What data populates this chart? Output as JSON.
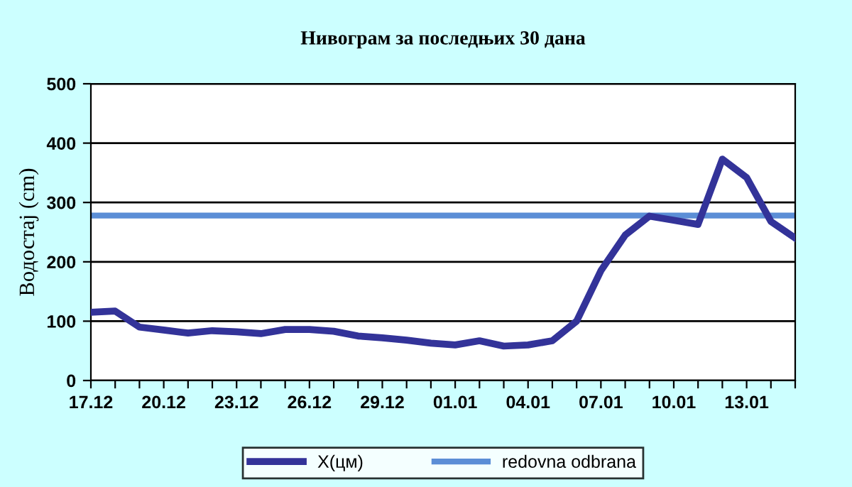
{
  "chart_data": {
    "type": "line",
    "title": "Нивограм за последњих 30 дана",
    "ylabel": "Водостај (cm)",
    "categories": [
      "17.12",
      null,
      null,
      "20.12",
      null,
      null,
      "23.12",
      null,
      null,
      "26.12",
      null,
      null,
      "29.12",
      null,
      null,
      "01.01",
      null,
      null,
      "04.01",
      null,
      null,
      "07.01",
      null,
      null,
      "10.01",
      null,
      null,
      "13.01",
      null,
      null
    ],
    "series": [
      {
        "name": "X(цм)",
        "color": "#333399",
        "values": [
          115,
          117,
          90,
          85,
          80,
          84,
          82,
          79,
          86,
          86,
          83,
          75,
          72,
          68,
          63,
          60,
          67,
          58,
          60,
          67,
          100,
          185,
          245,
          277,
          270,
          263,
          373,
          342,
          268,
          240
        ]
      }
    ],
    "ref_lines": [
      {
        "axis": "y",
        "value": 278,
        "label": "redovna odbrana",
        "color": "#5b8ed6",
        "line_style": "solid"
      }
    ],
    "ylim": [
      0,
      500
    ],
    "yticks": [
      0,
      100,
      200,
      300,
      400,
      500
    ],
    "grid": "y",
    "legend": "bottom",
    "marker": "none",
    "line_style": "solid"
  }
}
